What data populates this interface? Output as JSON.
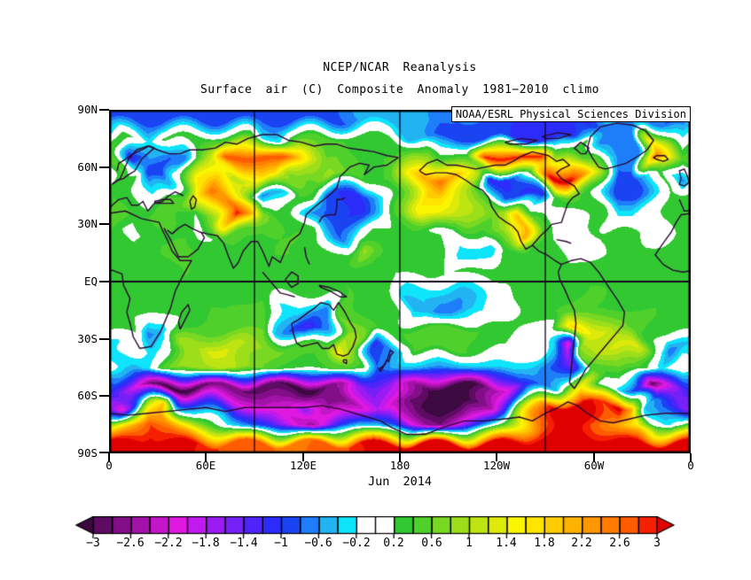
{
  "chart": {
    "title": "NCEP/NCAR Reanalysis",
    "subtitle": "Surface air (C) Composite Anomaly 1981−2010 climo",
    "credit": "NOAA/ESRL Physical Sciences Division",
    "date_label": "Jun 2014",
    "y_ticks": [
      "90N",
      "60N",
      "30N",
      "EQ",
      "30S",
      "60S",
      "90S"
    ],
    "x_ticks": [
      "0",
      "60E",
      "120E",
      "180",
      "120W",
      "60W",
      "0"
    ]
  },
  "chart_data": {
    "type": "heatmap",
    "title": "NCEP/NCAR Reanalysis",
    "subtitle": "Surface air (C) Composite Anomaly 1981−2010 climo",
    "variable": "surface air temperature anomaly",
    "units": "C",
    "climatology": "1981-2010",
    "period": "Jun 2014",
    "projection": "equirectangular, lon 0E..360E left to right, lat 90N..90S top to bottom",
    "lat_axis_ticks": [
      90,
      60,
      30,
      0,
      -30,
      -60,
      -90
    ],
    "lon_axis_ticks": [
      0,
      60,
      120,
      180,
      240,
      300,
      360
    ],
    "lon_gridlines": [
      90,
      180,
      270
    ],
    "equator_line": true,
    "colorbar": {
      "min": -3,
      "max": 3,
      "step": 0.2,
      "arrow_ends": true,
      "tick_labels": [
        "−3",
        "−2.6",
        "−2.2",
        "−1.8",
        "−1.4",
        "−1",
        "−0.6",
        "−0.2",
        "0.2",
        "0.6",
        "1",
        "1.4",
        "1.8",
        "2.2",
        "2.6",
        "3"
      ],
      "colors": [
        "#3C0940",
        "#5E0B64",
        "#820E88",
        "#A312A8",
        "#C415C8",
        "#E018E0",
        "#C01AEE",
        "#9A1CF2",
        "#7420F6",
        "#4E24F8",
        "#2C2CFA",
        "#1A44F2",
        "#1E7EFA",
        "#22B4F2",
        "#0EE4FA",
        "#FFFFFF",
        "#FFFFFF",
        "#32C832",
        "#50D02A",
        "#78D822",
        "#9CDE1A",
        "#BEE412",
        "#DEEA0A",
        "#FAF500",
        "#FFE400",
        "#FFCC00",
        "#FFB200",
        "#FF9800",
        "#FF7C00",
        "#FF5C00",
        "#F52000",
        "#DF0000"
      ]
    },
    "grid": {
      "lon_centers": [
        5,
        15,
        25,
        35,
        45,
        55,
        65,
        75,
        85,
        95,
        105,
        115,
        125,
        135,
        145,
        155,
        165,
        175,
        185,
        195,
        205,
        215,
        225,
        235,
        245,
        255,
        265,
        275,
        285,
        295,
        305,
        315,
        325,
        335,
        345,
        355
      ],
      "lat_centers": [
        85,
        75,
        65,
        55,
        45,
        35,
        25,
        15,
        5,
        -5,
        -15,
        -25,
        -35,
        -45,
        -55,
        -65,
        -75,
        -85
      ],
      "values": [
        [
          -0.9,
          -0.9,
          -0.9,
          -0.9,
          -0.9,
          -0.9,
          -0.9,
          -0.9,
          -0.9,
          -0.9,
          -0.9,
          -0.9,
          -0.9,
          -0.9,
          -0.8,
          -0.6,
          -0.5,
          -0.5,
          -0.5,
          -0.6,
          -0.7,
          -0.8,
          -0.8,
          -0.8,
          -0.9,
          -1.1,
          -1.2,
          -1.2,
          -1.2,
          -1.1,
          -0.6,
          -0.5,
          -0.5,
          -0.7,
          -0.8,
          -0.9
        ],
        [
          0.3,
          0.2,
          -0.3,
          0.3,
          0.3,
          0.3,
          0.4,
          0.4,
          0.4,
          -0.3,
          -0.3,
          0.4,
          0.4,
          0.4,
          0.4,
          0.3,
          0.3,
          0.3,
          -0.4,
          -0.4,
          -0.9,
          -0.9,
          -0.9,
          -0.9,
          -0.9,
          -1.1,
          -1.1,
          -1.1,
          -1.1,
          0.3,
          -0.8,
          -0.8,
          -0.8,
          1.5,
          0.8,
          -0.3
        ],
        [
          0.6,
          -1.2,
          -0.5,
          -0.8,
          -0.8,
          0.5,
          1.2,
          2.8,
          2.8,
          2.8,
          2.8,
          2.0,
          1.2,
          0.6,
          0.6,
          0.4,
          0.4,
          0.4,
          0.9,
          0.9,
          0.4,
          0.4,
          0.4,
          3.0,
          3.0,
          3.0,
          3.0,
          1.0,
          1.2,
          0.5,
          0.4,
          -0.6,
          -0.6,
          2.6,
          1.5,
          0.5
        ],
        [
          0.4,
          0.3,
          -1.0,
          -1.0,
          0.3,
          1.6,
          1.6,
          1.0,
          1.2,
          1.8,
          1.8,
          0.8,
          0.5,
          0.9,
          0.5,
          0.4,
          0.3,
          0.5,
          1.2,
          2.0,
          2.6,
          1.8,
          1.0,
          -1.2,
          -1.2,
          -0.6,
          0.4,
          3.2,
          3.2,
          1.6,
          0.5,
          -1.0,
          -1.0,
          -0.4,
          0.3,
          -0.7
        ],
        [
          0.4,
          0.3,
          -0.3,
          0.4,
          0.5,
          1.8,
          2.6,
          2.2,
          1.2,
          -0.7,
          -0.4,
          0.4,
          0.3,
          -0.8,
          -1.0,
          -1.2,
          -0.6,
          0.3,
          1.0,
          1.8,
          1.8,
          1.4,
          1.0,
          0.4,
          -0.9,
          -1.1,
          -1.1,
          0.3,
          0.6,
          0.4,
          0.1,
          -0.9,
          -0.9,
          -0.3,
          0.2,
          0.3
        ],
        [
          0.5,
          0.3,
          0.4,
          0.6,
          0.4,
          0.2,
          1.0,
          3.0,
          2.2,
          0.8,
          0.4,
          0.3,
          -0.5,
          -0.9,
          -1.0,
          -1.0,
          -0.5,
          0.2,
          0.6,
          1.4,
          1.4,
          1.0,
          0.9,
          0.7,
          1.0,
          2.0,
          0.6,
          0.1,
          0.0,
          0.2,
          0.3,
          -0.3,
          -0.3,
          0.0,
          0.2,
          0.4
        ],
        [
          0.4,
          0.1,
          0.3,
          0.4,
          0.3,
          0.1,
          0.2,
          0.6,
          0.5,
          0.4,
          0.4,
          0.4,
          0.3,
          -0.4,
          -0.8,
          -0.3,
          0.2,
          0.3,
          0.3,
          0.2,
          0.1,
          0.0,
          0.2,
          0.3,
          1.0,
          2.2,
          0.5,
          0.1,
          0.0,
          0.1,
          0.2,
          0.3,
          0.2,
          0.0,
          0.1,
          0.3
        ],
        [
          0.3,
          0.3,
          0.4,
          0.4,
          0.5,
          0.4,
          0.3,
          0.3,
          0.3,
          0.3,
          0.4,
          0.4,
          0.3,
          0.3,
          0.2,
          0.9,
          0.5,
          0.3,
          0.3,
          0.3,
          0.4,
          -0.4,
          -0.4,
          -0.4,
          0.3,
          0.3,
          0.3,
          0.3,
          0.1,
          0.1,
          0.2,
          0.2,
          0.3,
          0.3,
          0.3,
          0.3
        ],
        [
          0.4,
          0.3,
          0.2,
          0.3,
          0.4,
          0.3,
          0.2,
          0.2,
          0.3,
          0.3,
          0.3,
          0.3,
          0.4,
          0.4,
          0.3,
          0.3,
          0.2,
          0.2,
          0.3,
          0.3,
          0.2,
          0.2,
          0.3,
          0.3,
          0.3,
          0.3,
          0.4,
          0.4,
          0.3,
          0.3,
          0.3,
          0.3,
          0.2,
          0.2,
          0.3,
          0.3
        ],
        [
          0.4,
          0.4,
          0.4,
          0.3,
          0.3,
          0.4,
          0.4,
          0.3,
          0.3,
          0.3,
          0.3,
          0.3,
          0.3,
          0.4,
          0.4,
          0.3,
          0.3,
          0.2,
          -0.3,
          -0.3,
          -0.4,
          -0.4,
          -0.3,
          -0.1,
          0.0,
          0.3,
          0.3,
          0.3,
          0.3,
          0.4,
          0.4,
          0.3,
          0.3,
          0.3,
          0.3,
          0.4
        ],
        [
          0.3,
          0.3,
          0.4,
          0.4,
          0.3,
          0.3,
          0.4,
          0.4,
          0.5,
          0.5,
          -0.3,
          -0.3,
          -0.6,
          -0.8,
          0.5,
          0.4,
          0.3,
          0.3,
          -0.5,
          -0.5,
          -0.8,
          -0.8,
          -0.5,
          -0.2,
          0.0,
          0.3,
          0.4,
          0.4,
          0.5,
          0.5,
          0.4,
          0.4,
          0.4,
          0.4,
          0.3,
          0.3
        ],
        [
          0.3,
          0.2,
          -0.7,
          -0.5,
          0.3,
          0.4,
          0.5,
          0.5,
          0.6,
          0.6,
          -0.4,
          -0.8,
          -1.3,
          -0.6,
          0.8,
          0.6,
          0.4,
          0.4,
          0.4,
          0.4,
          0.5,
          0.6,
          0.4,
          0.4,
          0.3,
          0.2,
          0.0,
          0.0,
          1.9,
          1.4,
          1.2,
          0.8,
          0.5,
          0.4,
          0.3,
          0.3
        ],
        [
          -0.3,
          0.2,
          -0.3,
          0.2,
          1.0,
          1.0,
          1.3,
          1.3,
          1.0,
          0.8,
          0.6,
          0.5,
          0.5,
          0.6,
          1.5,
          0.8,
          -1.1,
          -0.5,
          0.4,
          0.5,
          0.6,
          0.6,
          0.4,
          0.3,
          0.2,
          0.1,
          0.0,
          -0.4,
          -2.2,
          0.8,
          1.0,
          1.3,
          1.3,
          0.1,
          -0.8,
          -0.5
        ],
        [
          -0.3,
          -0.5,
          -0.3,
          0.4,
          0.8,
          0.9,
          1.0,
          1.0,
          0.8,
          0.6,
          0.4,
          0.3,
          0.3,
          0.4,
          0.4,
          0.3,
          -0.8,
          -0.6,
          -0.5,
          -0.5,
          -0.6,
          -0.6,
          -0.5,
          -0.4,
          -0.3,
          -0.3,
          -0.4,
          -0.8,
          -1.5,
          0.4,
          0.5,
          0.6,
          0.5,
          0.3,
          -0.3,
          0.2
        ],
        [
          -1.0,
          -1.8,
          -2.8,
          -3.2,
          -3.2,
          -3.0,
          -2.8,
          -2.8,
          -2.8,
          -3.0,
          -3.0,
          -3.2,
          -3.2,
          -2.8,
          -2.5,
          -1.8,
          -1.5,
          -1.8,
          -2.5,
          -3.0,
          -3.2,
          -3.2,
          -3.2,
          -2.8,
          -2.2,
          -1.2,
          -0.8,
          -0.5,
          0.8,
          1.5,
          0.0,
          -0.2,
          -1.2,
          -3.0,
          -2.0,
          -1.4
        ],
        [
          -2.2,
          -1.0,
          0.8,
          2.0,
          -0.3,
          -0.8,
          -1.2,
          -1.8,
          -2.0,
          -2.4,
          -2.5,
          -2.2,
          -1.6,
          -2.6,
          -2.8,
          -2.2,
          -1.8,
          -2.2,
          -2.8,
          -3.0,
          -3.2,
          -3.2,
          -3.0,
          -2.4,
          -1.2,
          0.5,
          1.8,
          3.0,
          3.2,
          3.2,
          2.8,
          3.2,
          2.2,
          -0.5,
          -1.0,
          -1.5
        ],
        [
          1.0,
          2.0,
          2.8,
          2.4,
          1.6,
          0.8,
          0.3,
          -0.2,
          -0.6,
          -1.0,
          -1.6,
          -2.2,
          -2.6,
          -1.8,
          -1.0,
          -0.5,
          -0.4,
          -0.8,
          -2.0,
          -2.6,
          -2.8,
          -2.2,
          -1.4,
          -0.4,
          0.6,
          1.6,
          2.6,
          3.0,
          3.2,
          3.0,
          2.6,
          2.2,
          1.6,
          0.0,
          -0.3,
          0.2
        ],
        [
          3.2,
          3.2,
          3.2,
          3.2,
          3.2,
          3.0,
          2.8,
          2.8,
          2.8,
          2.8,
          2.6,
          2.6,
          2.6,
          2.8,
          2.8,
          3.0,
          3.0,
          3.0,
          3.2,
          3.2,
          3.0,
          3.0,
          3.0,
          3.0,
          3.2,
          3.2,
          3.2,
          3.2,
          3.2,
          3.2,
          3.2,
          3.2,
          3.2,
          3.2,
          3.2,
          3.2
        ]
      ]
    }
  }
}
